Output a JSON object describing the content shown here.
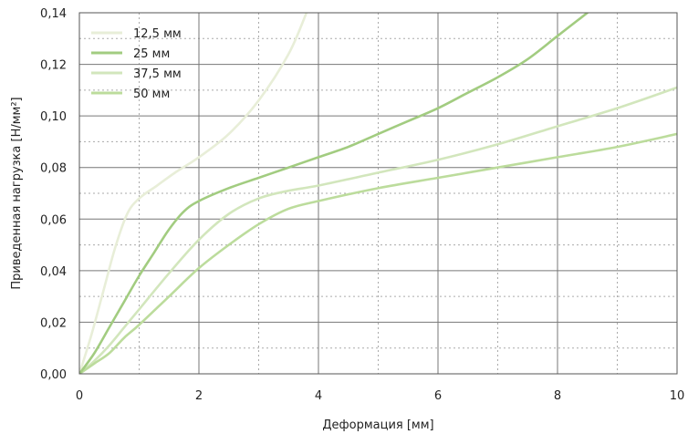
{
  "chart_data": {
    "type": "line",
    "title": "",
    "xlabel": "Деформация [мм]",
    "ylabel": "Приведенная нагрузка [Н/мм²]",
    "xlim": [
      0,
      10
    ],
    "ylim": [
      0,
      0.14
    ],
    "x_ticks": [
      "0",
      "2",
      "4",
      "6",
      "8",
      "10"
    ],
    "y_ticks": [
      "0,00",
      "0,02",
      "0,04",
      "0,06",
      "0,08",
      "0,10",
      "0,12",
      "0,14"
    ],
    "grid": {
      "major": true,
      "minor": true
    },
    "legend_position": "top-left",
    "series": [
      {
        "name": "12,5 мм",
        "color": "#e8eed8",
        "x": [
          0,
          0.2,
          0.4,
          0.6,
          0.8,
          1.0,
          1.3,
          1.6,
          2.0,
          2.5,
          3.0,
          3.5,
          3.8
        ],
        "y": [
          0,
          0.015,
          0.032,
          0.049,
          0.062,
          0.068,
          0.073,
          0.078,
          0.084,
          0.093,
          0.106,
          0.124,
          0.14
        ]
      },
      {
        "name": "25 мм",
        "color": "#a2cc80",
        "x": [
          0,
          0.25,
          0.5,
          0.75,
          1.0,
          1.25,
          1.5,
          1.75,
          2.0,
          2.5,
          3.0,
          3.5,
          4.0,
          4.5,
          5.0,
          5.5,
          6.0,
          6.5,
          7.0,
          7.5,
          8.0,
          8.5
        ],
        "y": [
          0,
          0.008,
          0.018,
          0.028,
          0.038,
          0.047,
          0.056,
          0.063,
          0.067,
          0.072,
          0.076,
          0.08,
          0.084,
          0.088,
          0.093,
          0.098,
          0.103,
          0.109,
          0.115,
          0.122,
          0.131,
          0.14
        ]
      },
      {
        "name": "37,5 мм",
        "color": "#d2e6bc",
        "x": [
          0,
          0.25,
          0.5,
          0.75,
          1.0,
          1.5,
          2.0,
          2.5,
          3.0,
          3.5,
          4.0,
          5.0,
          6.0,
          7.0,
          8.0,
          9.0,
          10.0
        ],
        "y": [
          0,
          0.005,
          0.011,
          0.018,
          0.025,
          0.039,
          0.052,
          0.062,
          0.068,
          0.071,
          0.073,
          0.078,
          0.083,
          0.089,
          0.096,
          0.103,
          0.111
        ]
      },
      {
        "name": "50 мм",
        "color": "#bcdc9c",
        "x": [
          0,
          0.25,
          0.5,
          0.75,
          1.0,
          1.5,
          2.0,
          2.5,
          3.0,
          3.5,
          4.0,
          5.0,
          6.0,
          7.0,
          8.0,
          9.0,
          10.0
        ],
        "y": [
          0,
          0.004,
          0.008,
          0.014,
          0.019,
          0.03,
          0.041,
          0.05,
          0.058,
          0.064,
          0.067,
          0.072,
          0.076,
          0.08,
          0.084,
          0.088,
          0.093
        ]
      }
    ]
  }
}
